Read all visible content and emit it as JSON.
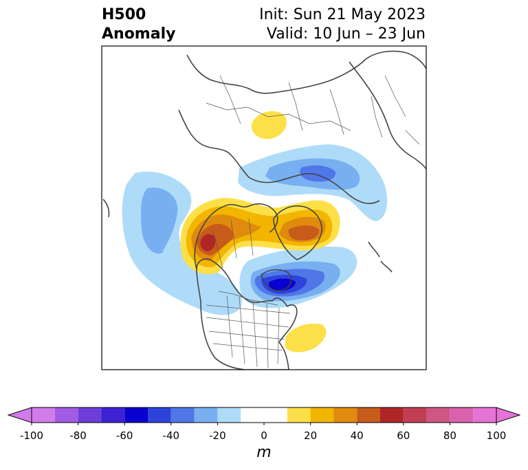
{
  "title": {
    "left_line1": "H500",
    "left_line2": "Anomaly",
    "init": "Init: Sun 21 May 2023",
    "valid": "Valid: 10 Jun – 23 Jun"
  },
  "colorbar": {
    "unit": "m",
    "tick_labels": [
      "-100",
      "-80",
      "-60",
      "-40",
      "-20",
      "0",
      "20",
      "40",
      "60",
      "80",
      "100"
    ],
    "bins": [
      {
        "range": [
          -100,
          -90
        ],
        "color": "#d27bea"
      },
      {
        "range": [
          -90,
          -80
        ],
        "color": "#a25be5"
      },
      {
        "range": [
          -80,
          -70
        ],
        "color": "#6d3dd9"
      },
      {
        "range": [
          -70,
          -60
        ],
        "color": "#3d22d4"
      },
      {
        "range": [
          -60,
          -50
        ],
        "color": "#0a00cf"
      },
      {
        "range": [
          -50,
          -40
        ],
        "color": "#2e43dc"
      },
      {
        "range": [
          -40,
          -30
        ],
        "color": "#5077e8"
      },
      {
        "range": [
          -30,
          -20
        ],
        "color": "#78aff0"
      },
      {
        "range": [
          -20,
          -10
        ],
        "color": "#aedcf8"
      },
      {
        "range": [
          -10,
          10
        ],
        "color": "#ffffff"
      },
      {
        "range": [
          10,
          20
        ],
        "color": "#fde047"
      },
      {
        "range": [
          20,
          30
        ],
        "color": "#f2b500"
      },
      {
        "range": [
          30,
          40
        ],
        "color": "#e08a0e"
      },
      {
        "range": [
          40,
          50
        ],
        "color": "#c75b19"
      },
      {
        "range": [
          50,
          60
        ],
        "color": "#b02626"
      },
      {
        "range": [
          60,
          70
        ],
        "color": "#c23e53"
      },
      {
        "range": [
          70,
          80
        ],
        "color": "#cf5683"
      },
      {
        "range": [
          80,
          90
        ],
        "color": "#da62ad"
      },
      {
        "range": [
          90,
          100
        ],
        "color": "#e673d6"
      }
    ]
  }
}
